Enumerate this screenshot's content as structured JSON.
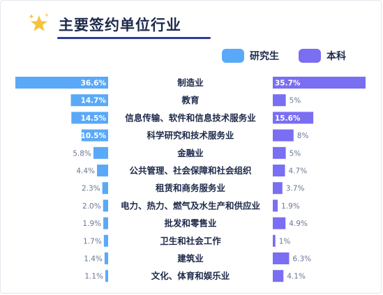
{
  "title": "主要签约单位行业",
  "icon": "sparkle-star-icon",
  "colors": {
    "graduate": "#5aa9f8",
    "undergraduate": "#7a6ef2",
    "title_underline": "#2f3c9a",
    "star": "#f6c43a"
  },
  "legend": {
    "graduate_label": "研究生",
    "undergraduate_label": "本科"
  },
  "chart_data": {
    "type": "bar",
    "orientation": "horizontal-butterfly",
    "categories": [
      "制造业",
      "教育",
      "信息传输、软件和信息技术服务业",
      "科学研究和技术服务业",
      "金融业",
      "公共管理、社会保障和社会组织",
      "租赁和商务服务业",
      "电力、热力、燃气及水生产和供应业",
      "批发和零售业",
      "卫生和社会工作",
      "建筑业",
      "文化、体育和娱乐业"
    ],
    "series": [
      {
        "name": "研究生",
        "values": [
          36.6,
          14.7,
          14.5,
          10.5,
          5.8,
          4.4,
          2.3,
          2.0,
          1.9,
          1.7,
          1.4,
          1.1
        ],
        "labels": [
          "36.6%",
          "14.7%",
          "14.5%",
          "10.5%",
          "5.8%",
          "4.4%",
          "2.3%",
          "2.0%",
          "1.9%",
          "1.7%",
          "1.4%",
          "1.1%"
        ]
      },
      {
        "name": "本科",
        "values": [
          35.7,
          5,
          15.6,
          8,
          5,
          4.7,
          3.7,
          1.9,
          4.9,
          1,
          6.3,
          4.1
        ],
        "labels": [
          "35.7%",
          "5%",
          "15.6%",
          "8%",
          "5%",
          "4.7%",
          "3.7%",
          "1.9%",
          "4.9%",
          "1%",
          "6.3%",
          "4.1%"
        ]
      }
    ],
    "unit": "%"
  }
}
